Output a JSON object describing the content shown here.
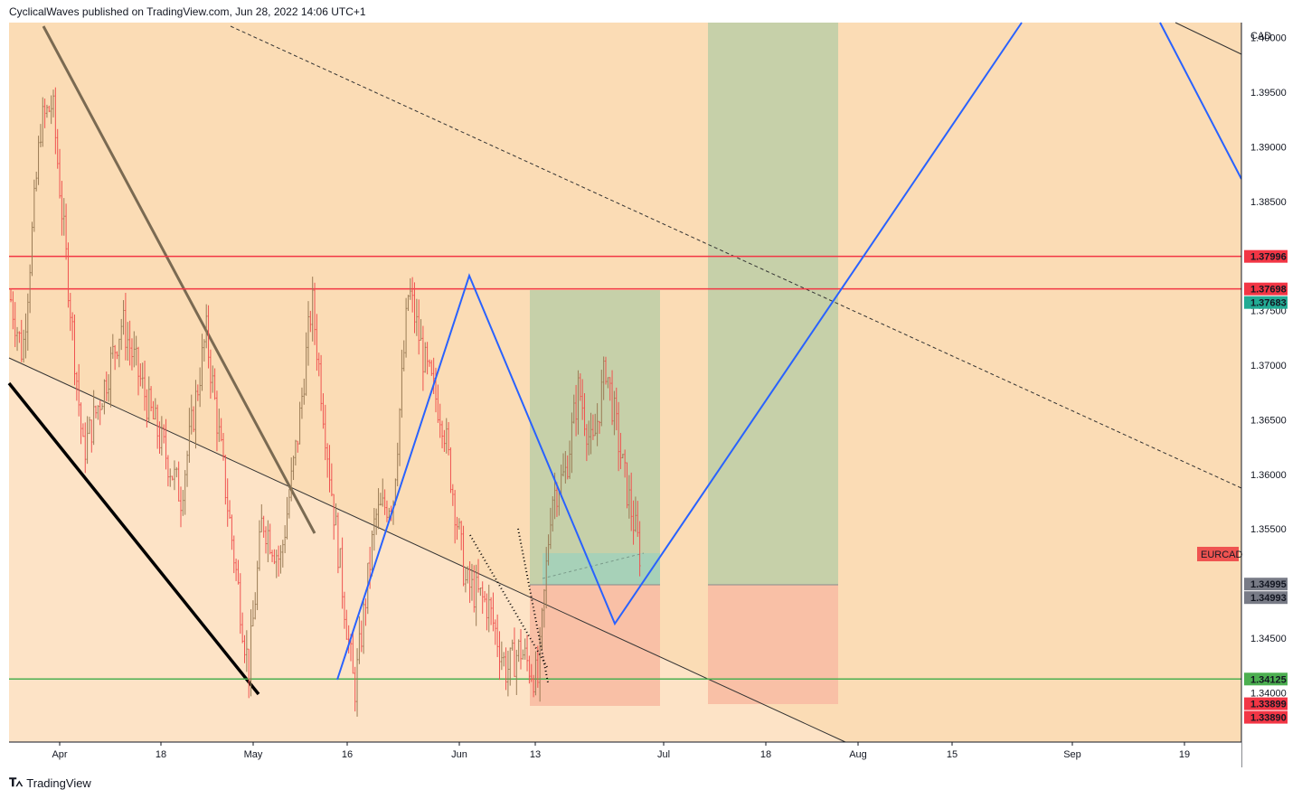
{
  "header": {
    "publisher_line": "CyclicalWaves published on TradingView.com, Jun 28, 2022 14:06 UTC+1"
  },
  "footer": {
    "brand": "TradingView",
    "logo": "tradingview-logo-icon"
  },
  "colors": {
    "bg_band_upper": "#fbdcb5",
    "bg_band_lower": "#fde3c6",
    "bull_candle": "#9a7b55",
    "bear_candle": "#ef5350",
    "resistance": "#f23645",
    "support": "#4caf50",
    "projection": "#2962ff",
    "target_zone": "#c6d0a9",
    "stop_zone": "#f9c0a6",
    "entry_zone": "#a7d1b8"
  },
  "chart_data": {
    "type": "candlestick",
    "symbol": "EURCAD",
    "currency": "CAD",
    "x_ticks": [
      "Apr",
      "18",
      "May",
      "16",
      "Jun",
      "13",
      "Jul",
      "18",
      "Aug",
      "15",
      "Sep",
      "19"
    ],
    "y_ticks": [
      "1.40000",
      "1.39500",
      "1.39000",
      "1.38500",
      "1.37500",
      "1.37000",
      "1.36500",
      "1.36000",
      "1.35500",
      "1.34500",
      "1.34000"
    ],
    "ylim": [
      1.3325,
      1.4
    ],
    "price_labels": [
      {
        "text": "1.37996",
        "value": 1.37996,
        "color": "#f23645"
      },
      {
        "text": "1.37698",
        "value": 1.37698,
        "color": "#f23645"
      },
      {
        "text": "1.37683",
        "value": 1.37683,
        "color": "#22ab94"
      },
      {
        "text": "1.34995",
        "value": 1.34995,
        "color": "#787b86"
      },
      {
        "text": "1.34993",
        "value": 1.34993,
        "color": "#787b86"
      },
      {
        "text": "1.34125",
        "value": 1.34125,
        "color": "#4caf50"
      },
      {
        "text": "1.33899",
        "value": 1.33899,
        "color": "#f23645"
      },
      {
        "text": "1.33890",
        "value": 1.3389,
        "color": "#f23645"
      }
    ],
    "symbol_tag": {
      "text": "EURCAD",
      "value": 1.3527
    },
    "horizontal_levels": [
      {
        "name": "resistance-upper",
        "value": 1.37996
      },
      {
        "name": "resistance-lower",
        "value": 1.37698
      },
      {
        "name": "support",
        "value": 1.34125
      }
    ],
    "grid": false
  }
}
